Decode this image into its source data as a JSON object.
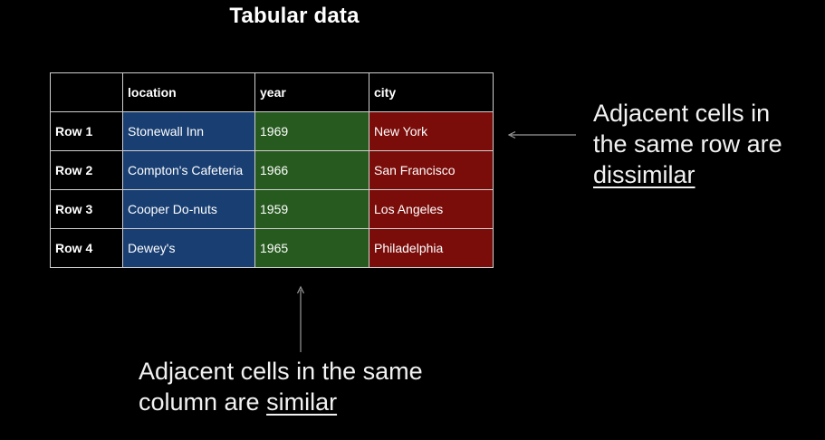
{
  "title": "Tabular data",
  "table": {
    "headers": [
      "",
      "location",
      "year",
      "city"
    ],
    "rows": [
      {
        "label": "Row 1",
        "location": "Stonewall Inn",
        "year": "1969",
        "city": "New York"
      },
      {
        "label": "Row 2",
        "location": "Compton's Cafeteria",
        "year": "1966",
        "city": "San Francisco"
      },
      {
        "label": "Row 3",
        "location": "Cooper Do-nuts",
        "year": "1959",
        "city": "Los Angeles"
      },
      {
        "label": "Row 4",
        "location": "Dewey's",
        "year": "1965",
        "city": "Philadelphia"
      }
    ],
    "column_colors": {
      "location": "#183e72",
      "year": "#275a1f",
      "city": "#7a0d0a"
    }
  },
  "annotations": {
    "right": {
      "line1": "Adjacent cells in",
      "line2": "the same row are",
      "emphasis": "dissimilar"
    },
    "bottom": {
      "line1": "Adjacent cells in the same",
      "prefix": "column are ",
      "emphasis": "similar"
    }
  }
}
